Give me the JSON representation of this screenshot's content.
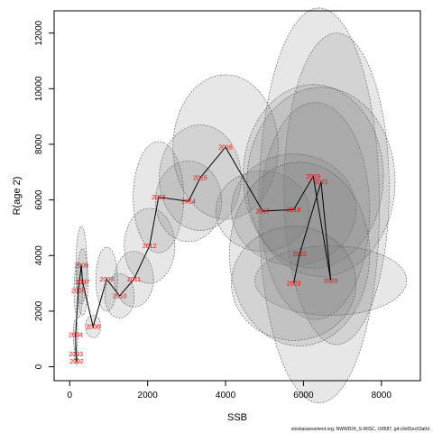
{
  "chart_data": {
    "type": "scatter",
    "xlabel": "SSB",
    "ylabel": "R(age 2)",
    "xlim": [
      -400,
      9000
    ],
    "ylim": [
      -500,
      12800
    ],
    "x_ticks": [
      0,
      2000,
      4000,
      6000,
      8000
    ],
    "y_ticks": [
      0,
      2000,
      4000,
      6000,
      8000,
      10000,
      12000
    ],
    "grid": false,
    "connecting_line": true,
    "colors": {
      "ellipse_fill": "#7a7a7a",
      "ellipse_stroke": "#555555",
      "line": "#000000",
      "year_label": "#ff0000"
    },
    "points": [
      {
        "year": "2002",
        "ssb": 180,
        "r": 200,
        "sx": 45,
        "sy": 120
      },
      {
        "year": "2003",
        "ssb": 160,
        "r": 450,
        "sx": 45,
        "sy": 250
      },
      {
        "year": "2004",
        "ssb": 150,
        "r": 1150,
        "sx": 60,
        "sy": 550
      },
      {
        "year": "2005",
        "ssb": 220,
        "r": 2750,
        "sx": 110,
        "sy": 1000
      },
      {
        "year": "2006",
        "ssb": 300,
        "r": 3650,
        "sx": 140,
        "sy": 1400
      },
      {
        "year": "2007",
        "ssb": 330,
        "r": 3050,
        "sx": 140,
        "sy": 1200
      },
      {
        "year": "2008",
        "ssb": 600,
        "r": 1450,
        "sx": 200,
        "sy": 400
      },
      {
        "year": "2009",
        "ssb": 950,
        "r": 3150,
        "sx": 280,
        "sy": 1150
      },
      {
        "year": "2010",
        "ssb": 1280,
        "r": 2550,
        "sx": 380,
        "sy": 800
      },
      {
        "year": "2011",
        "ssb": 1650,
        "r": 3150,
        "sx": 500,
        "sy": 1000
      },
      {
        "year": "2012",
        "ssb": 2050,
        "r": 4350,
        "sx": 650,
        "sy": 1350
      },
      {
        "year": "2013",
        "ssb": 2280,
        "r": 6100,
        "sx": 650,
        "sy": 2000
      },
      {
        "year": "2014",
        "ssb": 3050,
        "r": 5950,
        "sx": 850,
        "sy": 1450
      },
      {
        "year": "2015",
        "ssb": 3350,
        "r": 6800,
        "sx": 1050,
        "sy": 1900
      },
      {
        "year": "2016",
        "ssb": 4000,
        "r": 7900,
        "sx": 1350,
        "sy": 2600
      },
      {
        "year": "2017",
        "ssb": 4950,
        "r": 5600,
        "sx": 1200,
        "sy": 1450
      },
      {
        "year": "2018",
        "ssb": 5750,
        "r": 5650,
        "sx": 1600,
        "sy": 2000
      },
      {
        "year": "2019",
        "ssb": 6250,
        "r": 6850,
        "sx": 1800,
        "sy": 3300
      },
      {
        "year": "2020",
        "ssb": 6700,
        "r": 3100,
        "sx": 1950,
        "sy": 1250
      },
      {
        "year": "2021",
        "ssb": 6450,
        "r": 6650,
        "sx": 1900,
        "sy": 3400
      },
      {
        "year": "2022",
        "ssb": 5900,
        "r": 4050,
        "sx": 1800,
        "sy": 3300
      },
      {
        "year": "2023",
        "ssb": 5750,
        "r": 3000,
        "sx": 1600,
        "sy": 2050
      }
    ],
    "big_ellipses": [
      {
        "cx": 6400,
        "cy": 5800,
        "sx": 1550,
        "sy": 7100
      },
      {
        "cx": 6850,
        "cy": 6400,
        "sx": 1350,
        "sy": 5600
      },
      {
        "cx": 6300,
        "cy": 5600,
        "sx": 1400,
        "sy": 3900
      }
    ]
  },
  "footer": "stockassessment.org, NWWD24_S-WISC, r18587, git:c9c81ec53a0d"
}
